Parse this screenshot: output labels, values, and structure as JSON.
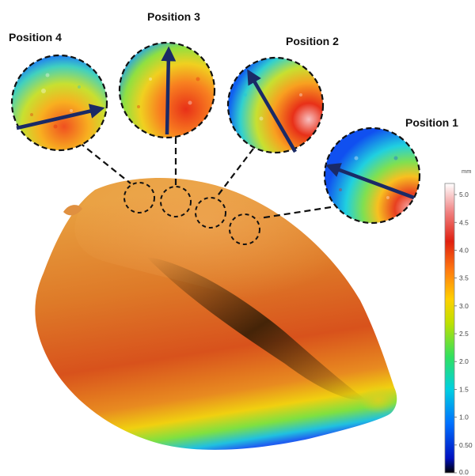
{
  "figure": {
    "positions": [
      {
        "id": "p4",
        "label": "Position 4"
      },
      {
        "id": "p3",
        "label": "Position 3"
      },
      {
        "id": "p2",
        "label": "Position 2"
      },
      {
        "id": "p1",
        "label": "Position 1"
      }
    ],
    "colorbar": {
      "unit": "mm",
      "ticks": [
        "5.0",
        "4.5",
        "4.0",
        "3.5",
        "3.0",
        "2.5",
        "2.0",
        "1.5",
        "1.0",
        "0.50",
        "0.0"
      ],
      "min": 0.0,
      "max": 5.2
    },
    "colors": {
      "outline": "#111111",
      "arrow": "#1a2a66",
      "scale": [
        "#000000",
        "#0010c0",
        "#0070ff",
        "#00d0e0",
        "#30e060",
        "#c0e000",
        "#ffd000",
        "#ff7a10",
        "#e02010",
        "#f08080",
        "#ffffff"
      ]
    }
  }
}
